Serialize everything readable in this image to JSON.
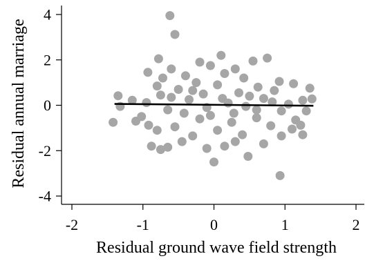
{
  "chart_data": {
    "type": "scatter",
    "xlabel": "Residual ground wave field strength",
    "ylabel": "Residual annual marriage",
    "xlim": [
      -2,
      2
    ],
    "ylim": [
      -4.4,
      4.2
    ],
    "x_ticks": [
      -2,
      -1,
      0,
      1,
      2
    ],
    "y_ticks": [
      -4,
      -2,
      0,
      2,
      4
    ],
    "x_tick_labels": [
      "-2",
      "-1",
      "0",
      "1",
      "2"
    ],
    "y_tick_labels": [
      "-4",
      "-2",
      "0",
      "2",
      "4"
    ],
    "grid": false,
    "legend": "none",
    "point_color": "#a6a6a6",
    "line_color": "#000000",
    "fit_line": {
      "x": [
        -1.4,
        1.4
      ],
      "y": [
        0.06,
        -0.02
      ]
    },
    "points": [
      [
        -0.62,
        3.95
      ],
      [
        -0.55,
        3.12
      ],
      [
        0.1,
        2.2
      ],
      [
        0.75,
        2.08
      ],
      [
        -0.78,
        2.05
      ],
      [
        0.55,
        1.95
      ],
      [
        -0.2,
        1.9
      ],
      [
        -0.05,
        1.75
      ],
      [
        -0.6,
        1.6
      ],
      [
        -0.93,
        1.45
      ],
      [
        0.3,
        1.6
      ],
      [
        -0.4,
        1.3
      ],
      [
        0.15,
        1.4
      ],
      [
        -0.72,
        1.2
      ],
      [
        0.42,
        1.2
      ],
      [
        0.92,
        1.05
      ],
      [
        1.12,
        0.95
      ],
      [
        1.35,
        0.75
      ],
      [
        -0.25,
        1.0
      ],
      [
        -0.8,
        0.85
      ],
      [
        0.05,
        0.9
      ],
      [
        0.62,
        0.8
      ],
      [
        -0.5,
        0.7
      ],
      [
        0.85,
        0.65
      ],
      [
        -1.35,
        0.42
      ],
      [
        -1.15,
        0.22
      ],
      [
        1.25,
        0.22
      ],
      [
        1.38,
        0.28
      ],
      [
        -0.95,
        0.12
      ],
      [
        1.05,
        0.05
      ],
      [
        -1.32,
        -0.05
      ],
      [
        0.2,
        0.1
      ],
      [
        -0.1,
        -0.1
      ],
      [
        0.45,
        -0.05
      ],
      [
        -0.35,
        0.25
      ],
      [
        0.7,
        0.3
      ],
      [
        -0.65,
        -0.2
      ],
      [
        0.95,
        -0.25
      ],
      [
        -1.02,
        -0.5
      ],
      [
        1.3,
        -0.25
      ],
      [
        -1.1,
        -0.7
      ],
      [
        -0.92,
        -0.88
      ],
      [
        1.15,
        -0.65
      ],
      [
        1.22,
        -0.88
      ],
      [
        0.6,
        -0.55
      ],
      [
        -0.2,
        -0.6
      ],
      [
        0.25,
        -0.75
      ],
      [
        -0.55,
        -0.95
      ],
      [
        0.8,
        -0.9
      ],
      [
        -0.8,
        -1.1
      ],
      [
        0.05,
        -1.1
      ],
      [
        0.4,
        -1.3
      ],
      [
        -0.3,
        -1.35
      ],
      [
        0.95,
        -1.35
      ],
      [
        -1.42,
        -0.75
      ],
      [
        -0.88,
        -1.8
      ],
      [
        -0.75,
        -1.95
      ],
      [
        -0.65,
        -1.85
      ],
      [
        0.3,
        -1.6
      ],
      [
        0.7,
        -1.7
      ],
      [
        0.15,
        -1.8
      ],
      [
        -0.1,
        -1.9
      ],
      [
        0.48,
        -2.25
      ],
      [
        0.0,
        -2.5
      ],
      [
        1.1,
        -1.05
      ],
      [
        1.25,
        -1.3
      ],
      [
        0.93,
        -3.1
      ],
      [
        -0.45,
        -1.6
      ],
      [
        -0.15,
        0.5
      ],
      [
        0.35,
        0.55
      ],
      [
        -0.6,
        0.35
      ],
      [
        0.6,
        -0.2
      ],
      [
        0.12,
        0.3
      ],
      [
        -0.42,
        -0.35
      ],
      [
        0.82,
        0.15
      ],
      [
        -0.05,
        -0.45
      ],
      [
        0.28,
        -0.35
      ],
      [
        -0.75,
        0.45
      ],
      [
        0.5,
        0.4
      ],
      [
        -0.3,
        0.65
      ]
    ]
  }
}
